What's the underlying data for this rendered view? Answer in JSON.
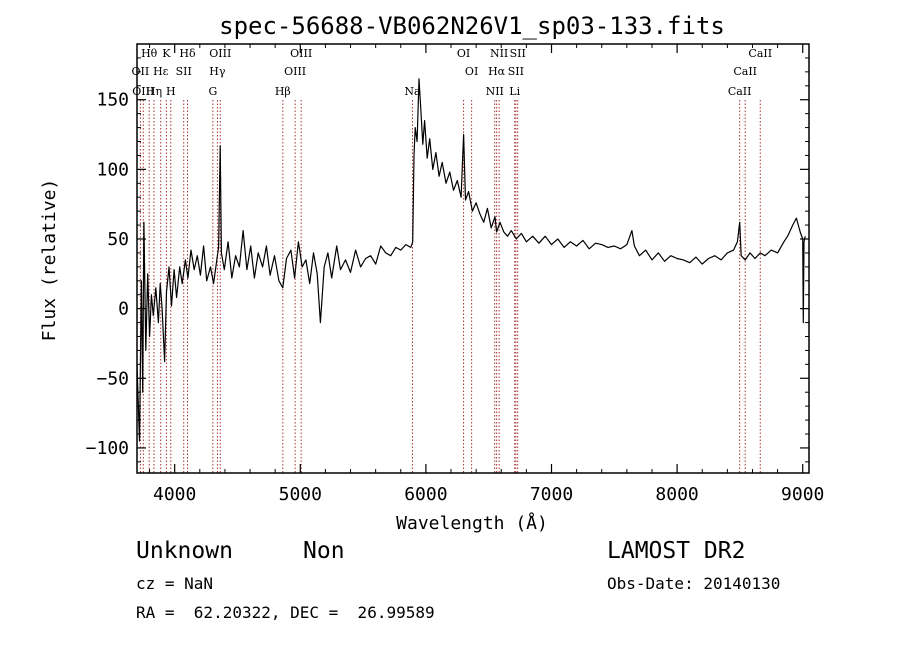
{
  "chart_data": {
    "type": "line",
    "title": "spec-56688-VB062N26V1_sp03-133.fits",
    "xlabel": "Wavelength (Å)",
    "ylabel": "Flux (relative)",
    "xlim": [
      3700,
      9050
    ],
    "ylim": [
      -118,
      190
    ],
    "xticks": [
      4000,
      5000,
      6000,
      7000,
      8000,
      9000
    ],
    "yticks": [
      -100,
      -50,
      0,
      50,
      100,
      150
    ],
    "x_tick_labels": [
      "4000",
      "5000",
      "6000",
      "7000",
      "8000",
      "9000"
    ],
    "y_tick_labels": [
      "−100",
      "−50",
      "0",
      "50",
      "100",
      "150"
    ],
    "series": [
      {
        "points": [
          [
            3700,
            -40
          ],
          [
            3720,
            -95
          ],
          [
            3735,
            20
          ],
          [
            3745,
            -60
          ],
          [
            3755,
            62
          ],
          [
            3770,
            -30
          ],
          [
            3785,
            25
          ],
          [
            3800,
            -20
          ],
          [
            3815,
            10
          ],
          [
            3830,
            -5
          ],
          [
            3850,
            15
          ],
          [
            3870,
            -10
          ],
          [
            3885,
            18
          ],
          [
            3900,
            0
          ],
          [
            3920,
            -38
          ],
          [
            3935,
            12
          ],
          [
            3955,
            30
          ],
          [
            3975,
            2
          ],
          [
            3995,
            28
          ],
          [
            4015,
            8
          ],
          [
            4040,
            30
          ],
          [
            4060,
            18
          ],
          [
            4085,
            35
          ],
          [
            4105,
            22
          ],
          [
            4130,
            42
          ],
          [
            4155,
            28
          ],
          [
            4180,
            38
          ],
          [
            4205,
            24
          ],
          [
            4230,
            45
          ],
          [
            4255,
            20
          ],
          [
            4285,
            30
          ],
          [
            4310,
            18
          ],
          [
            4335,
            35
          ],
          [
            4350,
            44
          ],
          [
            4362,
            117
          ],
          [
            4372,
            40
          ],
          [
            4395,
            28
          ],
          [
            4425,
            48
          ],
          [
            4455,
            22
          ],
          [
            4485,
            38
          ],
          [
            4515,
            30
          ],
          [
            4545,
            56
          ],
          [
            4575,
            28
          ],
          [
            4605,
            45
          ],
          [
            4635,
            22
          ],
          [
            4665,
            40
          ],
          [
            4700,
            30
          ],
          [
            4730,
            45
          ],
          [
            4760,
            24
          ],
          [
            4795,
            38
          ],
          [
            4830,
            20
          ],
          [
            4861,
            15
          ],
          [
            4890,
            36
          ],
          [
            4925,
            42
          ],
          [
            4955,
            22
          ],
          [
            4985,
            48
          ],
          [
            5015,
            30
          ],
          [
            5045,
            35
          ],
          [
            5075,
            18
          ],
          [
            5105,
            40
          ],
          [
            5135,
            25
          ],
          [
            5160,
            -10
          ],
          [
            5190,
            30
          ],
          [
            5220,
            40
          ],
          [
            5250,
            22
          ],
          [
            5290,
            45
          ],
          [
            5320,
            28
          ],
          [
            5360,
            35
          ],
          [
            5400,
            26
          ],
          [
            5440,
            42
          ],
          [
            5480,
            30
          ],
          [
            5520,
            36
          ],
          [
            5560,
            38
          ],
          [
            5600,
            32
          ],
          [
            5640,
            45
          ],
          [
            5680,
            40
          ],
          [
            5720,
            38
          ],
          [
            5760,
            44
          ],
          [
            5800,
            42
          ],
          [
            5840,
            46
          ],
          [
            5880,
            44
          ],
          [
            5895,
            48
          ],
          [
            5905,
            110
          ],
          [
            5915,
            130
          ],
          [
            5930,
            120
          ],
          [
            5945,
            165
          ],
          [
            5960,
            142
          ],
          [
            5975,
            118
          ],
          [
            5990,
            135
          ],
          [
            6010,
            108
          ],
          [
            6030,
            122
          ],
          [
            6055,
            100
          ],
          [
            6080,
            112
          ],
          [
            6105,
            95
          ],
          [
            6130,
            105
          ],
          [
            6160,
            90
          ],
          [
            6190,
            98
          ],
          [
            6220,
            85
          ],
          [
            6250,
            92
          ],
          [
            6280,
            80
          ],
          [
            6300,
            125
          ],
          [
            6315,
            78
          ],
          [
            6340,
            84
          ],
          [
            6370,
            70
          ],
          [
            6400,
            76
          ],
          [
            6430,
            68
          ],
          [
            6460,
            62
          ],
          [
            6490,
            72
          ],
          [
            6520,
            58
          ],
          [
            6550,
            66
          ],
          [
            6563,
            55
          ],
          [
            6590,
            62
          ],
          [
            6620,
            55
          ],
          [
            6650,
            52
          ],
          [
            6680,
            56
          ],
          [
            6720,
            50
          ],
          [
            6760,
            54
          ],
          [
            6800,
            48
          ],
          [
            6850,
            52
          ],
          [
            6900,
            47
          ],
          [
            6950,
            52
          ],
          [
            7000,
            46
          ],
          [
            7050,
            50
          ],
          [
            7100,
            44
          ],
          [
            7150,
            48
          ],
          [
            7200,
            45
          ],
          [
            7250,
            49
          ],
          [
            7300,
            43
          ],
          [
            7350,
            47
          ],
          [
            7400,
            46
          ],
          [
            7450,
            44
          ],
          [
            7500,
            45
          ],
          [
            7550,
            43
          ],
          [
            7600,
            46
          ],
          [
            7640,
            56
          ],
          [
            7660,
            45
          ],
          [
            7700,
            38
          ],
          [
            7750,
            42
          ],
          [
            7800,
            35
          ],
          [
            7850,
            40
          ],
          [
            7900,
            34
          ],
          [
            7950,
            38
          ],
          [
            8000,
            36
          ],
          [
            8050,
            35
          ],
          [
            8100,
            33
          ],
          [
            8150,
            37
          ],
          [
            8200,
            32
          ],
          [
            8250,
            36
          ],
          [
            8300,
            38
          ],
          [
            8350,
            35
          ],
          [
            8400,
            40
          ],
          [
            8450,
            42
          ],
          [
            8480,
            48
          ],
          [
            8498,
            62
          ],
          [
            8510,
            38
          ],
          [
            8542,
            35
          ],
          [
            8580,
            40
          ],
          [
            8620,
            36
          ],
          [
            8662,
            40
          ],
          [
            8700,
            38
          ],
          [
            8750,
            42
          ],
          [
            8800,
            40
          ],
          [
            8850,
            48
          ],
          [
            8880,
            52
          ],
          [
            8920,
            60
          ],
          [
            8950,
            65
          ],
          [
            8980,
            55
          ],
          [
            9000,
            50
          ],
          [
            9005,
            -10
          ],
          [
            9010,
            48
          ],
          [
            9020,
            52
          ]
        ]
      }
    ],
    "lines": [
      {
        "x": 3727,
        "label": "OII",
        "row": 2
      },
      {
        "x": 3750,
        "label": "OIII",
        "row": 3
      },
      {
        "x": 3797,
        "label": "Hθ",
        "row": 1
      },
      {
        "x": 3835,
        "label": "Hη",
        "row": 3
      },
      {
        "x": 3889,
        "label": "Hε",
        "row": 2
      },
      {
        "x": 3934,
        "label": "K",
        "row": 1
      },
      {
        "x": 3969,
        "label": "H",
        "row": 3
      },
      {
        "x": 4072,
        "label": "SII",
        "row": 2
      },
      {
        "x": 4102,
        "label": "Hδ",
        "row": 1
      },
      {
        "x": 4304,
        "label": "G",
        "row": 3
      },
      {
        "x": 4340,
        "label": "Hγ",
        "row": 2
      },
      {
        "x": 4363,
        "label": "OIII",
        "row": 1
      },
      {
        "x": 4861,
        "label": "Hβ",
        "row": 3
      },
      {
        "x": 4959,
        "label": "OIII",
        "row": 2
      },
      {
        "x": 5007,
        "label": "OIII",
        "row": 1
      },
      {
        "x": 5893,
        "label": "Na",
        "row": 3
      },
      {
        "x": 6300,
        "label": "OI",
        "row": 1
      },
      {
        "x": 6364,
        "label": "OI",
        "row": 2
      },
      {
        "x": 6548,
        "label": "NII",
        "row": 3
      },
      {
        "x": 6563,
        "label": "Hα",
        "row": 2
      },
      {
        "x": 6583,
        "label": "NII",
        "row": 1
      },
      {
        "x": 6707,
        "label": "Li",
        "row": 3
      },
      {
        "x": 6716,
        "label": "SII",
        "row": 2
      },
      {
        "x": 6731,
        "label": "SII",
        "row": 1
      },
      {
        "x": 8498,
        "label": "CaII",
        "row": 3
      },
      {
        "x": 8542,
        "label": "CaII",
        "row": 2
      },
      {
        "x": 8662,
        "label": "CaII",
        "row": 1
      }
    ],
    "colors": {
      "spectrum": "#000000",
      "line_marker": "#a83232",
      "axes": "#000000"
    }
  },
  "info": {
    "class": "Unknown",
    "subclass": "Non",
    "survey": "LAMOST DR2",
    "cz": "cz = NaN",
    "obs_date": "Obs-Date: 20140130",
    "radec": "RA =  62.20322, DEC =  26.99589"
  }
}
